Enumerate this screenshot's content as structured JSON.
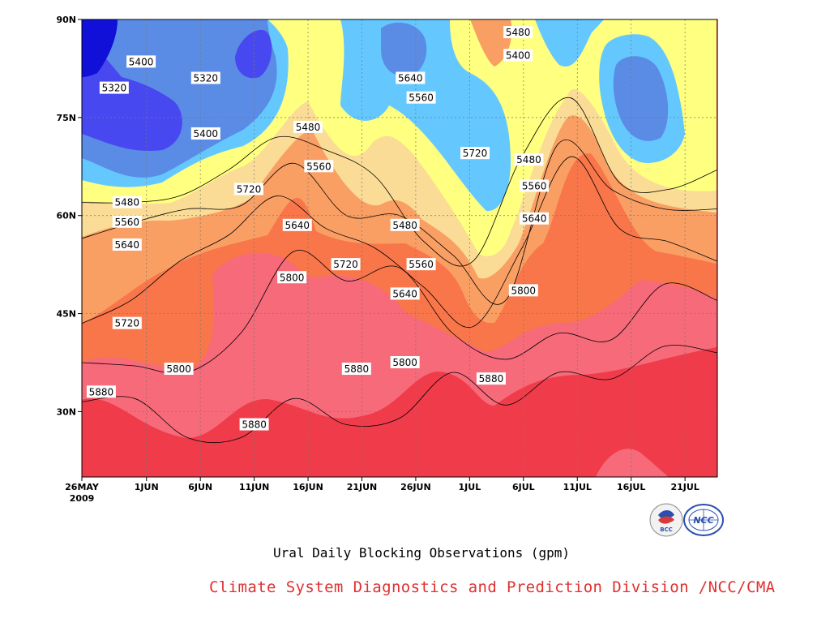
{
  "chart_data": {
    "type": "heatmap",
    "title": "Ural Daily Blocking Observations (gpm)",
    "xlabel": "",
    "ylabel": "",
    "x_tick_labels": [
      "26MAY",
      "1JUN",
      "6JUN",
      "11JUN",
      "16JUN",
      "21JUN",
      "26JUN",
      "1JUL",
      "6JUL",
      "11JUL",
      "16JUL",
      "21JUL"
    ],
    "x_year_label": "2009",
    "y_tick_labels": [
      "30N",
      "45N",
      "60N",
      "75N",
      "90N"
    ],
    "y_ticks": [
      30,
      45,
      60,
      75,
      90
    ],
    "ylim": [
      20,
      90
    ],
    "xlim_days": [
      0,
      59
    ],
    "contour_levels": [
      5320,
      5400,
      5480,
      5560,
      5640,
      5720,
      5800,
      5880
    ],
    "grid": true,
    "colors": {
      "lt5320": "#1010d8",
      "5320_5400": "#4848f0",
      "5400_5480": "#5a8ce6",
      "5480_5560": "#64c8ff",
      "5560_5640": "#ffff80",
      "5640_5720": "#fadc96",
      "5720_5800": "#fa9f64",
      "5800_5880": "#f8764a",
      "5880_5960": "#f66a7a",
      "gt5960": "#f03c4a"
    },
    "boundary_lines": [
      {
        "level": 5880,
        "lats": [
          31.5,
          32,
          26,
          26,
          32,
          28,
          29,
          36,
          31,
          36,
          35,
          40,
          39
        ]
      },
      {
        "level": 5800,
        "lats": [
          37.5,
          37,
          36,
          42,
          54.5,
          50,
          52,
          42,
          38,
          42,
          41,
          49.5,
          47
        ]
      },
      {
        "level": 5720,
        "lats": [
          43.5,
          47,
          53,
          57,
          63,
          58,
          55,
          49,
          43,
          55,
          69,
          58,
          56,
          53
        ]
      },
      {
        "level": 5640,
        "lats": [
          56.5,
          59,
          61,
          61.5,
          68,
          60,
          60,
          54,
          47,
          71,
          64,
          61,
          61
        ]
      },
      {
        "level": 5560,
        "lats": [
          62,
          62,
          63,
          67,
          72,
          70,
          66,
          56,
          53,
          69,
          78,
          65,
          64,
          67
        ]
      }
    ],
    "labels": [
      {
        "text": "5320",
        "day": 3,
        "lat": 79.5
      },
      {
        "text": "5400",
        "day": 5.5,
        "lat": 83.5
      },
      {
        "text": "5320",
        "day": 11.5,
        "lat": 81
      },
      {
        "text": "5400",
        "day": 11.5,
        "lat": 72.5
      },
      {
        "text": "5480",
        "day": 4.2,
        "lat": 62
      },
      {
        "text": "5560",
        "day": 4.2,
        "lat": 59
      },
      {
        "text": "5640",
        "day": 4.2,
        "lat": 55.5
      },
      {
        "text": "5720",
        "day": 4.2,
        "lat": 43.5
      },
      {
        "text": "5800",
        "day": 9,
        "lat": 36.5
      },
      {
        "text": "5880",
        "day": 1.8,
        "lat": 33
      },
      {
        "text": "5720",
        "day": 15.5,
        "lat": 64
      },
      {
        "text": "5880",
        "day": 16,
        "lat": 28
      },
      {
        "text": "5800",
        "day": 19.5,
        "lat": 50.5
      },
      {
        "text": "5640",
        "day": 20,
        "lat": 58.5
      },
      {
        "text": "5480",
        "day": 21,
        "lat": 73.5
      },
      {
        "text": "5560",
        "day": 22,
        "lat": 67.5
      },
      {
        "text": "5720",
        "day": 24.5,
        "lat": 52.5
      },
      {
        "text": "5880",
        "day": 25.5,
        "lat": 36.5
      },
      {
        "text": "5480",
        "day": 30,
        "lat": 58.5
      },
      {
        "text": "5560",
        "day": 31.5,
        "lat": 52.5
      },
      {
        "text": "5640",
        "day": 30,
        "lat": 48
      },
      {
        "text": "5800",
        "day": 30,
        "lat": 37.5
      },
      {
        "text": "5640",
        "day": 30.5,
        "lat": 81
      },
      {
        "text": "5560",
        "day": 31.5,
        "lat": 78
      },
      {
        "text": "5720",
        "day": 36.5,
        "lat": 69.5
      },
      {
        "text": "5880",
        "day": 38,
        "lat": 35
      },
      {
        "text": "5480",
        "day": 40.5,
        "lat": 88
      },
      {
        "text": "5400",
        "day": 40.5,
        "lat": 84.5
      },
      {
        "text": "5480",
        "day": 41.5,
        "lat": 68.5
      },
      {
        "text": "5560",
        "day": 42,
        "lat": 64.5
      },
      {
        "text": "5640",
        "day": 42,
        "lat": 59.5
      },
      {
        "text": "5800",
        "day": 41,
        "lat": 48.5
      }
    ]
  },
  "caption": "Ural Daily Blocking Observations (gpm)",
  "credit": "Climate System Diagnostics and Prediction Division /NCC/CMA",
  "logos": [
    {
      "name": "bcc-logo",
      "text": "BCC"
    },
    {
      "name": "ncc-logo",
      "text": "NCC"
    }
  ]
}
